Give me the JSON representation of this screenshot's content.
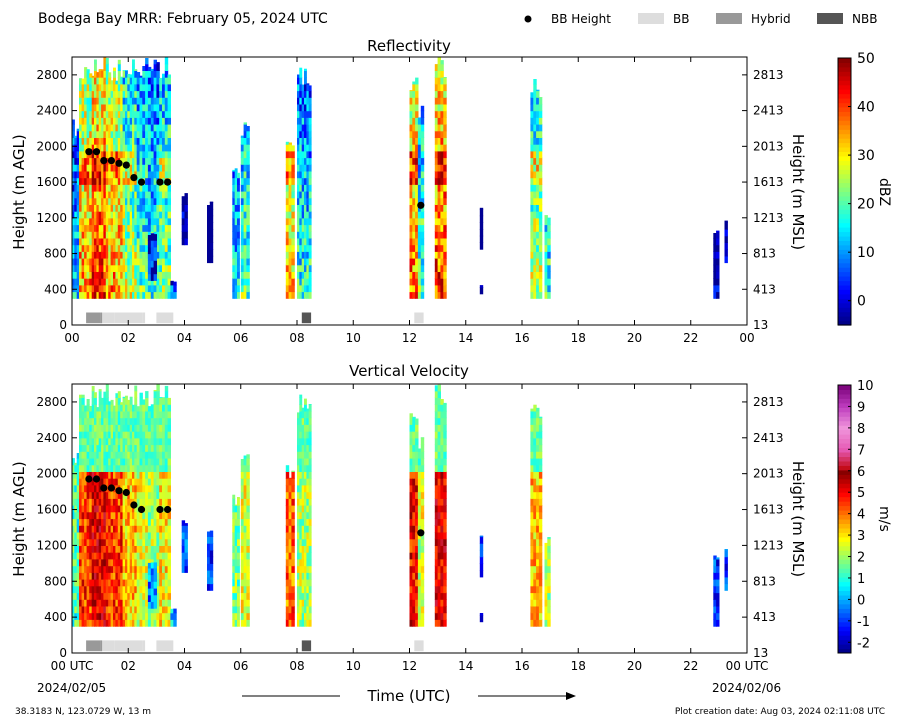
{
  "header": {
    "title": "Bodega Bay MRR:  February 05, 2024 UTC",
    "legend": [
      {
        "label": "BB Height",
        "color": "#000000",
        "kind": "dot"
      },
      {
        "label": "BB",
        "color": "#dddddd",
        "kind": "box"
      },
      {
        "label": "Hybrid",
        "color": "#999999",
        "kind": "box"
      },
      {
        "label": "NBB",
        "color": "#555555",
        "kind": "box"
      }
    ]
  },
  "footer": {
    "xlabel": "Time (UTC)",
    "date_left": "2024/02/05",
    "date_right": "2024/02/06",
    "location": "38.3183 N, 123.0729 W, 13 m",
    "created": "Plot creation date: Aug 03, 2024 02:11:08 UTC"
  },
  "chart_data": [
    {
      "type": "heatmap",
      "title": "Reflectivity",
      "ylabel": "Height (m AGL)",
      "y2label": "Height (m MSL)",
      "xlim": [
        0,
        24
      ],
      "ylim": [
        0,
        3000
      ],
      "x_ticks": [
        "00",
        "02",
        "04",
        "06",
        "08",
        "10",
        "12",
        "14",
        "16",
        "18",
        "20",
        "22",
        "00"
      ],
      "y_ticks": [
        "0",
        "400",
        "800",
        "1200",
        "1600",
        "2000",
        "2400",
        "2800"
      ],
      "y2_ticks": [
        "13",
        "413",
        "813",
        "1213",
        "1613",
        "2013",
        "2413",
        "2813"
      ],
      "colorbar": {
        "label": "dBZ",
        "min": -5,
        "max": 50,
        "ticks": [
          "0",
          "10",
          "20",
          "30",
          "40",
          "50"
        ],
        "tick_values": [
          0,
          10,
          20,
          30,
          40,
          50
        ]
      }
    },
    {
      "type": "heatmap",
      "title": "Vertical Velocity",
      "ylabel": "Height (m AGL)",
      "y2label": "Height (m MSL)",
      "xlim": [
        0,
        24
      ],
      "ylim": [
        0,
        3000
      ],
      "x_ticks": [
        "00 UTC",
        "02",
        "04",
        "06",
        "08",
        "10",
        "12",
        "14",
        "16",
        "18",
        "20",
        "22",
        "00 UTC"
      ],
      "y_ticks": [
        "0",
        "400",
        "800",
        "1200",
        "1600",
        "2000",
        "2400",
        "2800"
      ],
      "y2_ticks": [
        "13",
        "413",
        "813",
        "1213",
        "1613",
        "2013",
        "2413",
        "2813"
      ],
      "colorbar": {
        "label": "m/s",
        "min": -2.5,
        "max": 10,
        "ticks": [
          "-2",
          "-1",
          "0",
          "1",
          "2",
          "3",
          "4",
          "5",
          "6",
          "7",
          "8",
          "9",
          "10"
        ],
        "tick_values": [
          -2,
          -1,
          0,
          1,
          2,
          3,
          4,
          5,
          6,
          7,
          8,
          9,
          10
        ]
      }
    }
  ],
  "bb_points": [
    {
      "t": 0.6,
      "h": 1940
    },
    {
      "t": 0.87,
      "h": 1940
    },
    {
      "t": 1.13,
      "h": 1840
    },
    {
      "t": 1.4,
      "h": 1840
    },
    {
      "t": 1.67,
      "h": 1810
    },
    {
      "t": 1.93,
      "h": 1790
    },
    {
      "t": 2.2,
      "h": 1650
    },
    {
      "t": 2.47,
      "h": 1600
    },
    {
      "t": 3.13,
      "h": 1600
    },
    {
      "t": 3.4,
      "h": 1600
    },
    {
      "t": 12.4,
      "h": 1340
    }
  ],
  "bb_types": [
    {
      "start": 0.5,
      "end": 1.0,
      "type": "Hybrid"
    },
    {
      "start": 1.0,
      "end": 1.5,
      "type": "BB"
    },
    {
      "start": 1.0,
      "end": 1.05,
      "type": "Hybrid"
    },
    {
      "start": 1.5,
      "end": 2.5,
      "type": "BB"
    },
    {
      "start": 2.5,
      "end": 2.6,
      "type": "BB"
    },
    {
      "start": 3.0,
      "end": 3.6,
      "type": "BB"
    },
    {
      "start": 8.17,
      "end": 8.5,
      "type": "NBB"
    },
    {
      "start": 12.17,
      "end": 12.5,
      "type": "BB"
    }
  ]
}
